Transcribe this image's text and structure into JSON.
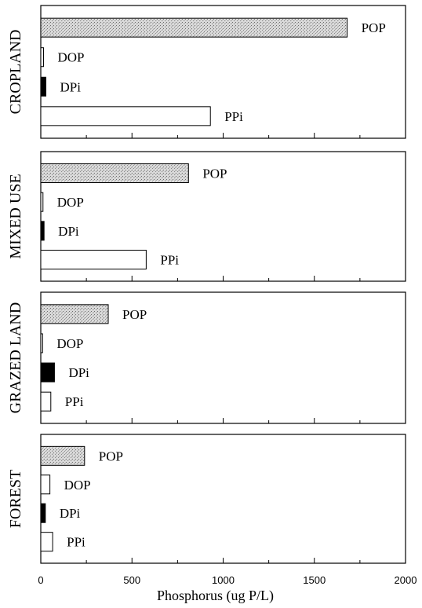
{
  "chart_data": {
    "type": "bar",
    "orientation": "horizontal",
    "xlabel": "Phosphorus (ug P/L)",
    "xlim": [
      0,
      2000
    ],
    "xticks": [
      0,
      500,
      1000,
      1500,
      2000
    ],
    "bar_styles": {
      "POP": {
        "fill": "#d6d6d6",
        "pattern": "stipple"
      },
      "DOP": {
        "fill": "#ffffff"
      },
      "DPi": {
        "fill": "#000000"
      },
      "PPi": {
        "fill": "#ffffff"
      }
    },
    "panels": [
      {
        "name": "CROPLAND",
        "categories": [
          "POP",
          "DOP",
          "DPi",
          "PPi"
        ],
        "values": [
          1680,
          15,
          28,
          930
        ]
      },
      {
        "name": "MIXED USE",
        "categories": [
          "POP",
          "DOP",
          "DPi",
          "PPi"
        ],
        "values": [
          810,
          12,
          18,
          578
        ]
      },
      {
        "name": "GRAZED LAND",
        "categories": [
          "POP",
          "DOP",
          "DPi",
          "PPi"
        ],
        "values": [
          370,
          10,
          75,
          55
        ]
      },
      {
        "name": "FOREST",
        "categories": [
          "POP",
          "DOP",
          "DPi",
          "PPi"
        ],
        "values": [
          240,
          50,
          25,
          65
        ]
      }
    ]
  }
}
